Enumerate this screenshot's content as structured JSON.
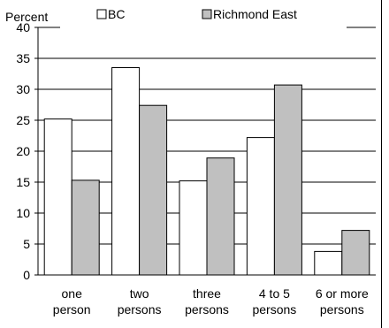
{
  "chart_data": {
    "type": "bar",
    "title": "",
    "ylabel": "Percent",
    "xlabel": "",
    "ylim": [
      0,
      40
    ],
    "yticks": [
      "0",
      "5",
      "10",
      "15",
      "20",
      "25",
      "30",
      "35",
      "40"
    ],
    "ytick_values": [
      0,
      5,
      10,
      15,
      20,
      25,
      30,
      35,
      40
    ],
    "grid": true,
    "legend_position": "top",
    "categories": [
      [
        "one",
        "person"
      ],
      [
        "two",
        "persons"
      ],
      [
        "three",
        "persons"
      ],
      [
        "4 to 5",
        "persons"
      ],
      [
        "6 or more",
        "persons"
      ]
    ],
    "series": [
      {
        "name": "BC",
        "color": "#ffffff",
        "values": [
          25.2,
          33.5,
          15.2,
          22.2,
          3.8
        ]
      },
      {
        "name": "Richmond East",
        "color": "#c0c0c0",
        "values": [
          15.3,
          27.4,
          18.9,
          30.7,
          7.2
        ]
      }
    ]
  }
}
